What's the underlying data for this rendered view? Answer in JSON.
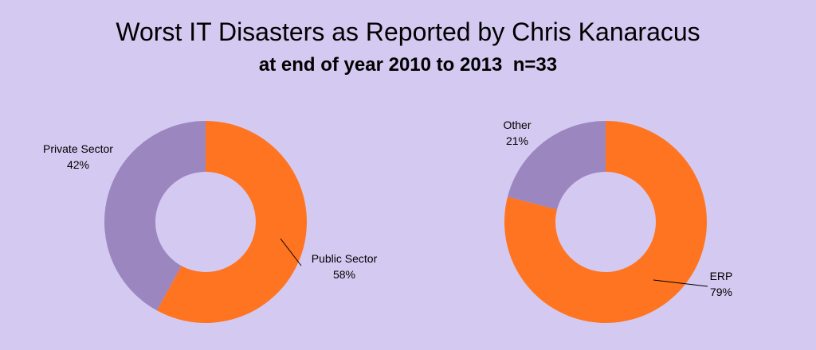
{
  "title": "Worst IT Disasters as Reported by Chris Kanaracus",
  "subtitle": "at end of year 2010 to 2013  n=33",
  "colors": {
    "background": "#d4c9f0",
    "orange": "#ff7420",
    "purple": "#9b86c0"
  },
  "chart_data": [
    {
      "type": "pie",
      "donut": true,
      "slices": [
        {
          "label": "Public Sector",
          "value_label": "58%",
          "value": 58,
          "color": "#ff7420"
        },
        {
          "label": "Private Sector",
          "value_label": "42%",
          "value": 42,
          "color": "#9b86c0"
        }
      ]
    },
    {
      "type": "pie",
      "donut": true,
      "slices": [
        {
          "label": "ERP",
          "value_label": "79%",
          "value": 79,
          "color": "#ff7420"
        },
        {
          "label": "Other",
          "value_label": "21%",
          "value": 21,
          "color": "#9b86c0"
        }
      ]
    }
  ]
}
